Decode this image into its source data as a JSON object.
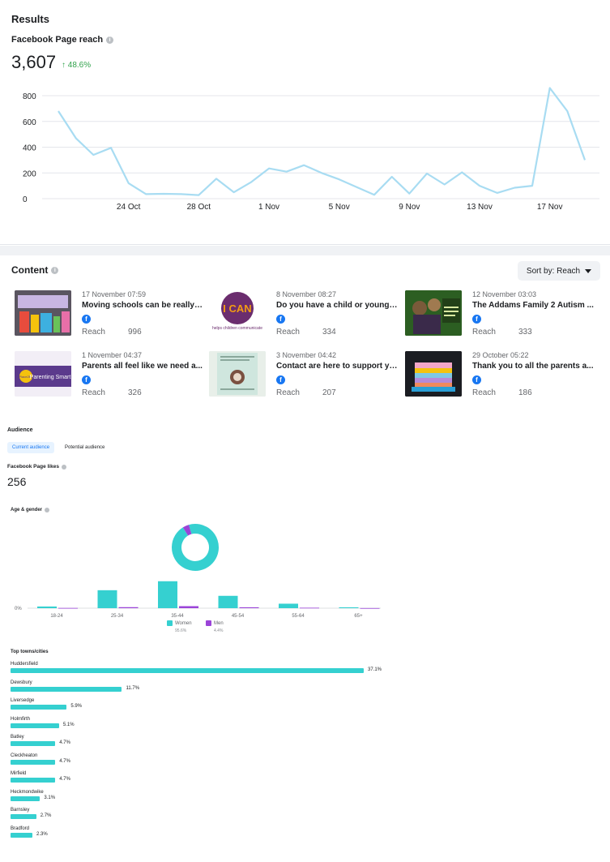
{
  "results": {
    "title": "Results",
    "metric_label": "Facebook Page reach",
    "value": "3,607",
    "change": "48.6%",
    "line_color": "#a8dcf2"
  },
  "chart_data": [
    {
      "type": "line",
      "title": "",
      "y_ticks": [
        "800",
        "600",
        "400",
        "200",
        "0"
      ],
      "ylim": [
        0,
        900
      ],
      "x_ticks": [
        "24 Oct",
        "28 Oct",
        "1 Nov",
        "5 Nov",
        "9 Nov",
        "13 Nov",
        "17 Nov"
      ],
      "x_tick_index": [
        4,
        8,
        12,
        16,
        20,
        24,
        28
      ],
      "values": [
        680,
        470,
        340,
        395,
        120,
        35,
        38,
        35,
        28,
        155,
        50,
        130,
        235,
        210,
        260,
        200,
        150,
        90,
        30,
        170,
        40,
        195,
        110,
        205,
        100,
        45,
        85,
        100,
        860,
        680,
        300
      ],
      "grid": true
    },
    {
      "type": "bar",
      "title": "Age & gender",
      "categories": [
        "18-24",
        "25-34",
        "35-44",
        "45-54",
        "55-64",
        "65+"
      ],
      "series": [
        {
          "name": "Women",
          "values": [
            1.5,
            16,
            24,
            11,
            4,
            0.8
          ]
        },
        {
          "name": "Men",
          "values": [
            0.2,
            0.9,
            1.8,
            0.8,
            0.4,
            0.1
          ]
        }
      ],
      "y_tick": "0%",
      "ylim": [
        0,
        26
      ]
    },
    {
      "type": "pie",
      "title": "",
      "slices": [
        {
          "name": "Women",
          "value": 95.6
        },
        {
          "name": "Men",
          "value": 4.4
        }
      ]
    },
    {
      "type": "bar",
      "title": "Top towns/cities",
      "orientation": "horizontal",
      "categories": [
        "Huddersfield",
        "Dewsbury",
        "Liversedge",
        "Holmfirth",
        "Batley",
        "Cleckheaton",
        "Mirfield",
        "Heckmondwike",
        "Barnsley",
        "Bradford"
      ],
      "values": [
        37.1,
        11.7,
        5.9,
        5.1,
        4.7,
        4.7,
        4.7,
        3.1,
        2.7,
        2.3
      ],
      "labels": [
        "37.1%",
        "11.7%",
        "5.9%",
        "5.1%",
        "4.7%",
        "4.7%",
        "4.7%",
        "3.1%",
        "2.7%",
        "2.3%"
      ]
    }
  ],
  "content": {
    "title": "Content",
    "sort_label": "Sort by: Reach",
    "reach_label": "Reach",
    "posts": [
      {
        "date": "17 November 07:59",
        "text": "Moving schools can be really ...",
        "reach": "996"
      },
      {
        "date": "8 November 08:27",
        "text": "Do you have a child or young ...",
        "reach": "334"
      },
      {
        "date": "12 November 03:03",
        "text": "The Addams Family 2 Autism ...",
        "reach": "333"
      },
      {
        "date": "1 November 04:37",
        "text": "Parents all feel like we need a...",
        "reach": "326"
      },
      {
        "date": "3 November 04:42",
        "text": "Contact are here to support yo...",
        "reach": "207"
      },
      {
        "date": "29 October 05:22",
        "text": "Thank you to all the parents a...",
        "reach": "186"
      }
    ],
    "thumb_texts": {
      "ican_logo": "I CAN",
      "ican_tagline": "helps children communicate",
      "parenting": "Parenting Smart",
      "place2be": "Place2Be"
    }
  },
  "audience": {
    "title": "Audience",
    "tab_current": "Current audience",
    "tab_potential": "Potential audience",
    "likes_label": "Facebook Page likes",
    "likes_value": "256",
    "age_label": "Age & gender",
    "legend": [
      {
        "name": "Women",
        "pct": "95.6%",
        "color": "#35d0d0"
      },
      {
        "name": "Men",
        "pct": "4.4%",
        "color": "#9b44d8"
      }
    ],
    "towns_label": "Top towns/cities"
  }
}
